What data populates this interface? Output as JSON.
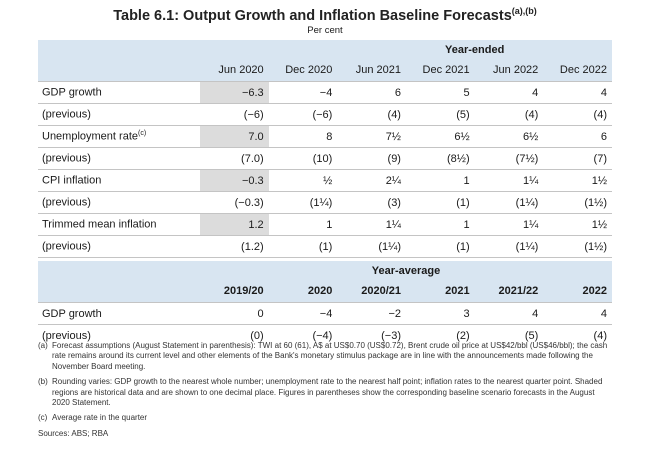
{
  "title": {
    "text": "Table 6.1: Output Growth and Inflation Baseline Forecasts",
    "sup": "(a),(b)"
  },
  "subtitle": "Per cent",
  "year_ended": {
    "heading": "Year-ended",
    "columns": [
      "Jun 2020",
      "Dec 2020",
      "Jun 2021",
      "Dec 2021",
      "Jun 2022",
      "Dec 2022"
    ],
    "rows": [
      {
        "label": "GDP growth",
        "sup": "",
        "values": [
          "−6.3",
          "−4",
          "6",
          "5",
          "4",
          "4"
        ]
      },
      {
        "label": "(previous)",
        "sup": "",
        "values": [
          "(−6)",
          "(−6)",
          "(4)",
          "(5)",
          "(4)",
          "(4)"
        ]
      },
      {
        "label": "Unemployment rate",
        "sup": "(c)",
        "values": [
          "7.0",
          "8",
          "7½",
          "6½",
          "6½",
          "6"
        ]
      },
      {
        "label": "(previous)",
        "sup": "",
        "values": [
          "(7.0)",
          "(10)",
          "(9)",
          "(8½)",
          "(7½)",
          "(7)"
        ]
      },
      {
        "label": "CPI inflation",
        "sup": "",
        "values": [
          "−0.3",
          "½",
          "2¼",
          "1",
          "1¼",
          "1½"
        ]
      },
      {
        "label": "(previous)",
        "sup": "",
        "values": [
          "(−0.3)",
          "(1¼)",
          "(3)",
          "(1)",
          "(1¼)",
          "(1½)"
        ]
      },
      {
        "label": "Trimmed mean inflation",
        "sup": "",
        "values": [
          "1.2",
          "1",
          "1¼",
          "1",
          "1¼",
          "1½"
        ]
      },
      {
        "label": "(previous)",
        "sup": "",
        "values": [
          "(1.2)",
          "(1)",
          "(1¼)",
          "(1)",
          "(1¼)",
          "(1½)"
        ]
      }
    ]
  },
  "year_average": {
    "heading": "Year-average",
    "columns": [
      "2019/20",
      "2020",
      "2020/21",
      "2021",
      "2021/22",
      "2022"
    ],
    "rows": [
      {
        "label": "GDP growth",
        "values": [
          "0",
          "−4",
          "−2",
          "3",
          "4",
          "4"
        ]
      },
      {
        "label": "(previous)",
        "values": [
          "(0)",
          "(−4)",
          "(−3)",
          "(2)",
          "(5)",
          "(4)"
        ]
      }
    ]
  },
  "notes": [
    {
      "key": "(a)",
      "text": "Forecast assumptions (August Statement in parenthesis): TWI at 60 (61), A$ at US$0.70 (US$0.72), Brent crude oil price at US$42/bbl (US$46/bbl); the cash rate remains around its current level and other elements of the Bank's monetary stimulus package are in line with the announcements made following the November Board meeting."
    },
    {
      "key": "(b)",
      "text": "Rounding varies: GDP growth to the nearest whole number; unemployment rate to the nearest half point; inflation rates to the nearest quarter point. Shaded regions are historical data and are shown to one decimal place. Figures in parentheses show the corresponding baseline scenario forecasts in the August 2020 Statement."
    },
    {
      "key": "(c)",
      "text": "Average rate in the quarter"
    }
  ],
  "sources": "Sources: ABS; RBA",
  "colors": {
    "band": "#d8e5f1",
    "historical_shade": "#dcdcdc",
    "rule": "#c4c4c4"
  }
}
